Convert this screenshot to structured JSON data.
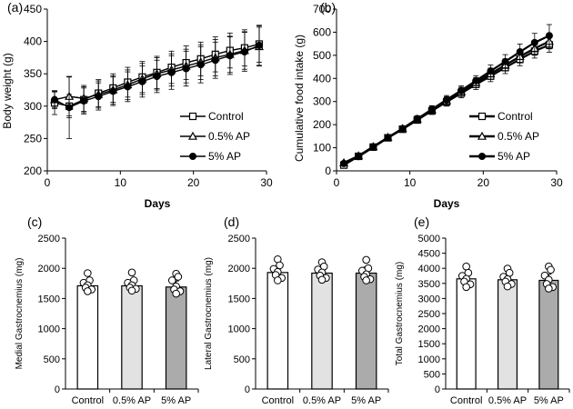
{
  "chart_data": [
    {
      "panel": "(a)",
      "type": "line",
      "xlabel": "Days",
      "ylabel": "Body weight (g)",
      "xlim": [
        0,
        30
      ],
      "ylim": [
        200,
        450
      ],
      "xticks": [
        "0",
        "10",
        "20",
        "30"
      ],
      "yticks": [
        "200",
        "250",
        "300",
        "350",
        "400",
        "450"
      ],
      "x": [
        1,
        3,
        5,
        7,
        9,
        11,
        13,
        15,
        17,
        19,
        21,
        23,
        25,
        27,
        29
      ],
      "series": [
        {
          "name": "Control",
          "marker": "square",
          "values": [
            305,
            300,
            310,
            320,
            328,
            337,
            345,
            352,
            360,
            367,
            373,
            380,
            386,
            390,
            396
          ],
          "errors": [
            18,
            18,
            20,
            21,
            22,
            23,
            24,
            25,
            25,
            26,
            26,
            27,
            27,
            28,
            28
          ]
        },
        {
          "name": "0.5% AP",
          "marker": "triangle",
          "values": [
            310,
            315,
            312,
            318,
            325,
            333,
            342,
            350,
            356,
            362,
            368,
            375,
            380,
            386,
            392
          ],
          "errors": [
            12,
            30,
            20,
            21,
            22,
            23,
            24,
            25,
            25,
            26,
            27,
            28,
            28,
            29,
            30
          ]
        },
        {
          "name": "5% AP",
          "marker": "circle",
          "values": [
            310,
            298,
            308,
            315,
            323,
            330,
            338,
            346,
            352,
            358,
            364,
            371,
            378,
            384,
            394
          ],
          "errors": [
            14,
            48,
            20,
            21,
            22,
            23,
            24,
            25,
            26,
            27,
            28,
            28,
            29,
            30,
            31
          ]
        }
      ],
      "legend": "bottom-right"
    },
    {
      "panel": "(b)",
      "type": "line",
      "xlabel": "Days",
      "ylabel": "Cumulative food intake (g)",
      "xlim": [
        0,
        30
      ],
      "ylim": [
        0,
        700
      ],
      "xticks": [
        "0",
        "10",
        "20",
        "30"
      ],
      "yticks": [
        "0",
        "100",
        "200",
        "300",
        "400",
        "500",
        "600",
        "700"
      ],
      "x": [
        1,
        3,
        5,
        7,
        9,
        11,
        13,
        15,
        17,
        19,
        21,
        23,
        25,
        27,
        29
      ],
      "series": [
        {
          "name": "Control",
          "marker": "square",
          "values": [
            25,
            63,
            103,
            143,
            180,
            220,
            260,
            298,
            336,
            374,
            410,
            447,
            483,
            518,
            545
          ],
          "errors": [
            6,
            7,
            8,
            10,
            12,
            14,
            16,
            18,
            20,
            22,
            24,
            26,
            28,
            30,
            32
          ]
        },
        {
          "name": "0.5% AP",
          "marker": "triangle",
          "values": [
            35,
            65,
            105,
            145,
            183,
            224,
            264,
            303,
            342,
            382,
            420,
            458,
            495,
            530,
            560
          ],
          "errors": [
            6,
            7,
            8,
            10,
            12,
            14,
            16,
            18,
            20,
            22,
            24,
            26,
            28,
            30,
            32
          ]
        },
        {
          "name": "5% AP",
          "marker": "circle",
          "values": [
            32,
            62,
            102,
            143,
            183,
            225,
            266,
            308,
            348,
            390,
            432,
            473,
            515,
            555,
            585
          ],
          "errors": [
            6,
            7,
            8,
            10,
            12,
            14,
            16,
            18,
            20,
            22,
            26,
            30,
            34,
            40,
            48
          ]
        }
      ],
      "legend": "bottom-right"
    },
    {
      "panel": "(c)",
      "type": "bar",
      "ylabel": "Medial Gastrocnemius (mg)",
      "ylim": [
        0,
        2500
      ],
      "yticks": [
        "0",
        "500",
        "1000",
        "1500",
        "2000",
        "2500"
      ],
      "categories": [
        "Control",
        "0.5% AP",
        "5% AP"
      ],
      "values": [
        1710,
        1710,
        1690
      ],
      "errors": [
        70,
        70,
        100
      ],
      "fills": [
        "#ffffff",
        "#e2e2e2",
        "#ababab"
      ],
      "points": [
        [
          1920,
          1800,
          1760,
          1720,
          1680,
          1650,
          1620
        ],
        [
          1930,
          1800,
          1760,
          1720,
          1680,
          1660,
          1630
        ],
        [
          1910,
          1860,
          1800,
          1700,
          1650,
          1620,
          1580
        ]
      ]
    },
    {
      "panel": "(d)",
      "type": "bar",
      "ylabel": "Lateral Gastrocnemius (mg)",
      "ylim": [
        0,
        2500
      ],
      "yticks": [
        "0",
        "500",
        "1000",
        "1500",
        "2000",
        "2500"
      ],
      "categories": [
        "Control",
        "0.5% AP",
        "5% AP"
      ],
      "values": [
        1930,
        1920,
        1920
      ],
      "errors": [
        90,
        80,
        100
      ],
      "fills": [
        "#ffffff",
        "#e2e2e2",
        "#ababab"
      ],
      "points": [
        [
          2150,
          2050,
          1990,
          1940,
          1890,
          1840,
          1800
        ],
        [
          2100,
          2030,
          1980,
          1930,
          1880,
          1840,
          1810
        ],
        [
          2140,
          2000,
          1960,
          1900,
          1860,
          1820,
          1800
        ]
      ]
    },
    {
      "panel": "(e)",
      "type": "bar",
      "ylabel": "Total Gastrocnemius (mg)",
      "ylim": [
        0,
        5000
      ],
      "yticks": [
        "0",
        "500",
        "1000",
        "1500",
        "2000",
        "2500",
        "3000",
        "3500",
        "4000",
        "4500",
        "5000"
      ],
      "categories": [
        "Control",
        "0.5% AP",
        "5% AP"
      ],
      "values": [
        3650,
        3620,
        3600
      ],
      "errors": [
        150,
        150,
        200
      ],
      "fills": [
        "#ffffff",
        "#e2e2e2",
        "#ababab"
      ],
      "points": [
        [
          4060,
          3850,
          3750,
          3650,
          3560,
          3470,
          3380
        ],
        [
          3990,
          3850,
          3720,
          3640,
          3560,
          3480,
          3400
        ],
        [
          4060,
          3950,
          3760,
          3620,
          3480,
          3380,
          3330
        ]
      ]
    }
  ]
}
